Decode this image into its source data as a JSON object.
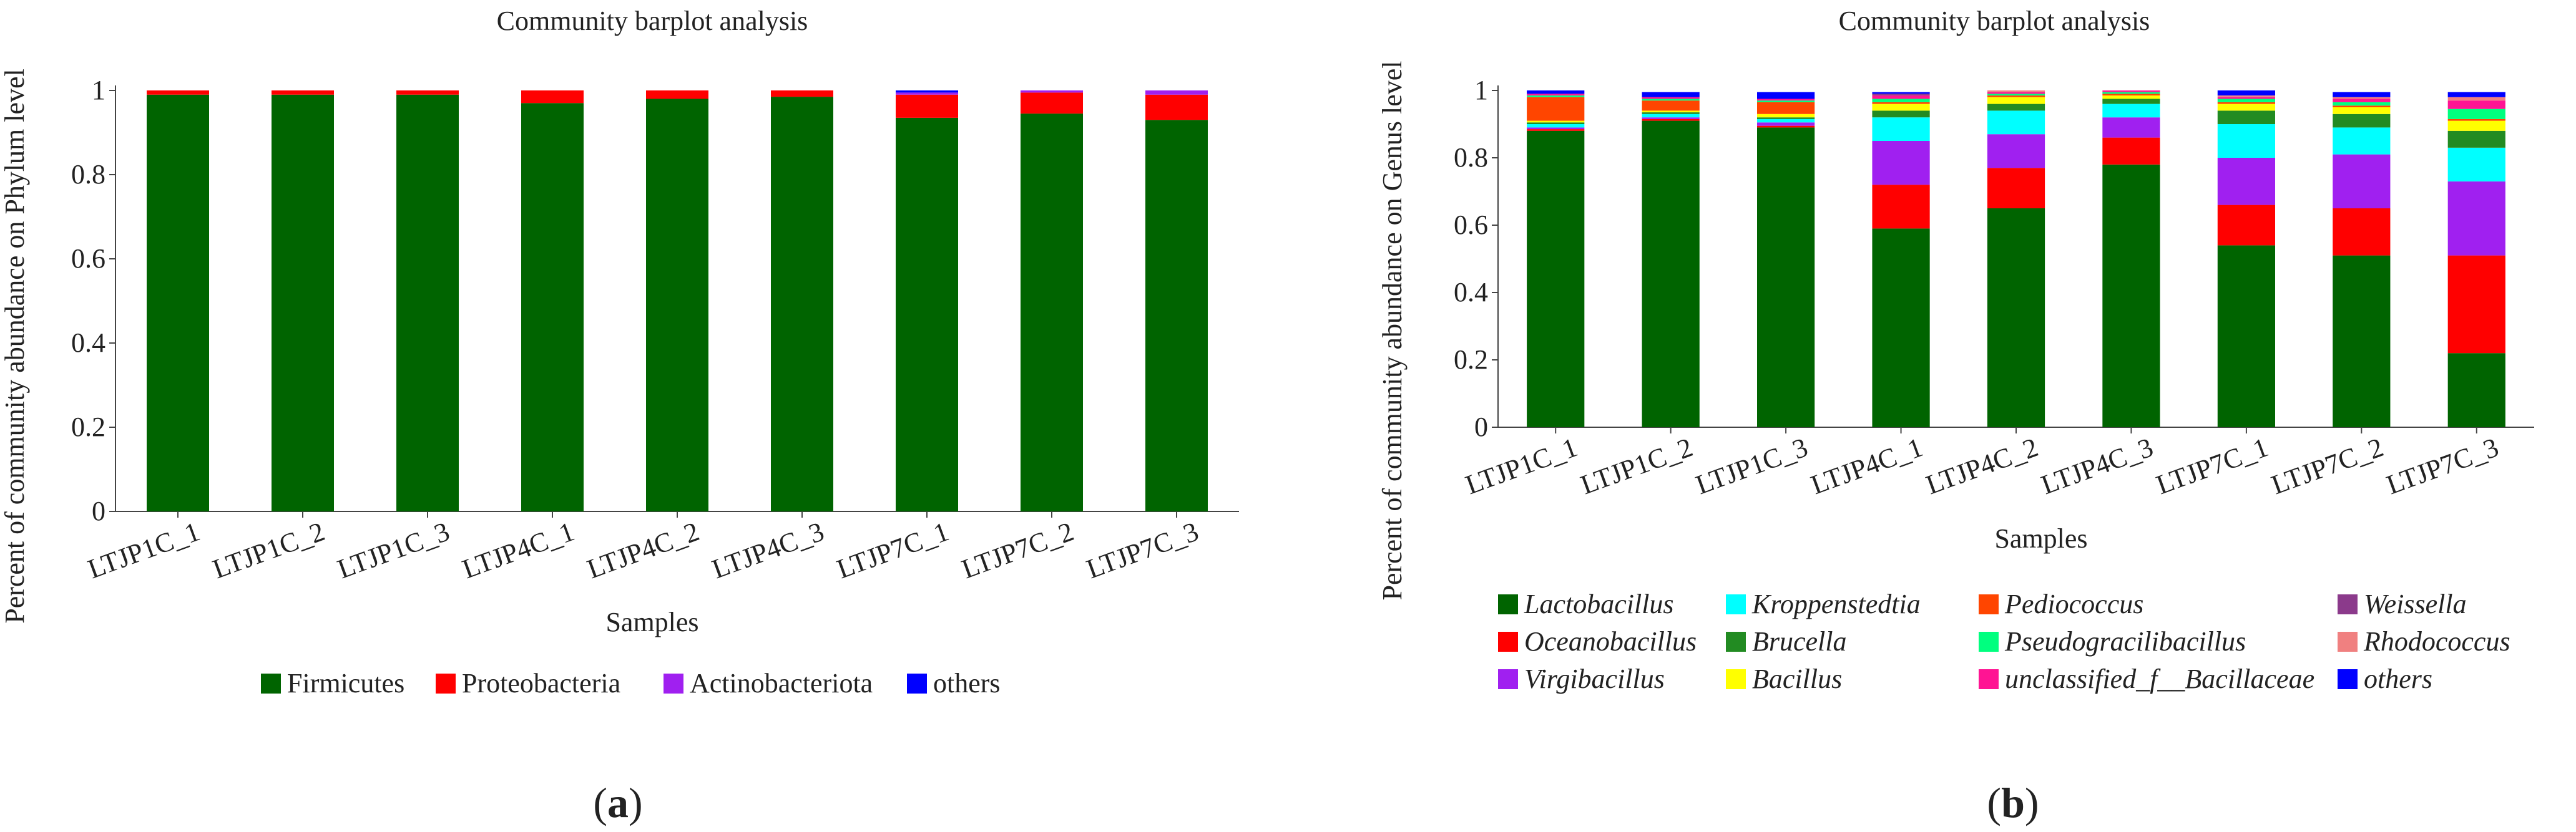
{
  "panels": [
    {
      "caption": "a",
      "chart_data": {
        "type": "bar",
        "stacked": true,
        "title": "Community barplot analysis",
        "xlabel": "Samples",
        "ylabel": "Percent of community abundance on Phylum level",
        "ylim": [
          0,
          1
        ],
        "yticks": [
          "0",
          "0.2",
          "0.4",
          "0.6",
          "0.8",
          "1"
        ],
        "categories": [
          "LTJP1C_1",
          "LTJP1C_2",
          "LTJP1C_3",
          "LTJP4C_1",
          "LTJP4C_2",
          "LTJP4C_3",
          "LTJP7C_1",
          "LTJP7C_2",
          "LTJP7C_3"
        ],
        "series": [
          {
            "name": "Firmicutes",
            "color": "#006400",
            "italic": false,
            "values": [
              0.99,
              0.99,
              0.99,
              0.97,
              0.98,
              0.985,
              0.935,
              0.945,
              0.93
            ]
          },
          {
            "name": "Proteobacteria",
            "color": "#ff0000",
            "italic": false,
            "values": [
              0.01,
              0.01,
              0.01,
              0.03,
              0.02,
              0.015,
              0.055,
              0.05,
              0.06
            ]
          },
          {
            "name": "Actinobacteriota",
            "color": "#a020f0",
            "italic": false,
            "values": [
              0,
              0,
              0,
              0,
              0,
              0,
              0.005,
              0.005,
              0.01
            ]
          },
          {
            "name": "others",
            "color": "#0000ff",
            "italic": false,
            "values": [
              0,
              0,
              0,
              0,
              0,
              0,
              0.005,
              0,
              0
            ]
          }
        ],
        "legend_position": "bottom"
      }
    },
    {
      "caption": "b",
      "chart_data": {
        "type": "bar",
        "stacked": true,
        "title": "Community barplot analysis",
        "xlabel": "Samples",
        "ylabel": "Percent of community abundance on Genus level",
        "ylim": [
          0,
          1
        ],
        "yticks": [
          "0",
          "0.2",
          "0.4",
          "0.6",
          "0.8",
          "1"
        ],
        "categories": [
          "LTJP1C_1",
          "LTJP1C_2",
          "LTJP1C_3",
          "LTJP4C_1",
          "LTJP4C_2",
          "LTJP4C_3",
          "LTJP7C_1",
          "LTJP7C_2",
          "LTJP7C_3"
        ],
        "series": [
          {
            "name": "Lactobacillus",
            "color": "#006400",
            "italic": true,
            "values": [
              0.88,
              0.91,
              0.89,
              0.59,
              0.65,
              0.78,
              0.54,
              0.51,
              0.22
            ]
          },
          {
            "name": "Oceanobacillus",
            "color": "#ff0000",
            "italic": true,
            "values": [
              0.005,
              0.005,
              0.005,
              0.13,
              0.12,
              0.08,
              0.12,
              0.14,
              0.29
            ]
          },
          {
            "name": "Virgibacillus",
            "color": "#a020f0",
            "italic": true,
            "values": [
              0.005,
              0.005,
              0.01,
              0.13,
              0.1,
              0.06,
              0.14,
              0.16,
              0.22
            ]
          },
          {
            "name": "Kroppenstedtia",
            "color": "#00ffff",
            "italic": true,
            "values": [
              0.01,
              0.01,
              0.01,
              0.07,
              0.07,
              0.04,
              0.1,
              0.08,
              0.1
            ]
          },
          {
            "name": "Brucella",
            "color": "#228b22",
            "italic": true,
            "values": [
              0.005,
              0.005,
              0.005,
              0.02,
              0.02,
              0.015,
              0.04,
              0.04,
              0.05
            ]
          },
          {
            "name": "Bacillus",
            "color": "#ffff00",
            "italic": true,
            "values": [
              0.005,
              0.005,
              0.01,
              0.02,
              0.02,
              0.01,
              0.02,
              0.02,
              0.03
            ]
          },
          {
            "name": "Pediococcus",
            "color": "#ff4500",
            "italic": true,
            "values": [
              0.07,
              0.03,
              0.035,
              0.005,
              0.005,
              0.005,
              0.005,
              0.005,
              0.005
            ]
          },
          {
            "name": "Pseudogracilibacillus",
            "color": "#00ff7f",
            "italic": true,
            "values": [
              0.005,
              0.005,
              0.005,
              0.01,
              0.005,
              0.005,
              0.01,
              0.01,
              0.03
            ]
          },
          {
            "name": "unclassified_f__Bacillaceae",
            "color": "#ff1493",
            "italic": true,
            "values": [
              0.005,
              0.005,
              0.005,
              0.01,
              0.005,
              0.005,
              0.005,
              0.01,
              0.025
            ]
          },
          {
            "name": "Weissella",
            "color": "#8b3a8b",
            "italic": true,
            "values": [
              0,
              0,
              0,
              0.005,
              0,
              0,
              0,
              0,
              0
            ]
          },
          {
            "name": "Rhodococcus",
            "color": "#f08080",
            "italic": true,
            "values": [
              0,
              0,
              0,
              0,
              0.005,
              0,
              0.005,
              0.005,
              0.01
            ]
          },
          {
            "name": "others",
            "color": "#0000ff",
            "italic": true,
            "values": [
              0.015,
              0.015,
              0.02,
              0.005,
              0.005,
              0.01,
              0.015,
              0.015,
              0.015
            ]
          }
        ],
        "legend_position": "bottom"
      }
    }
  ]
}
